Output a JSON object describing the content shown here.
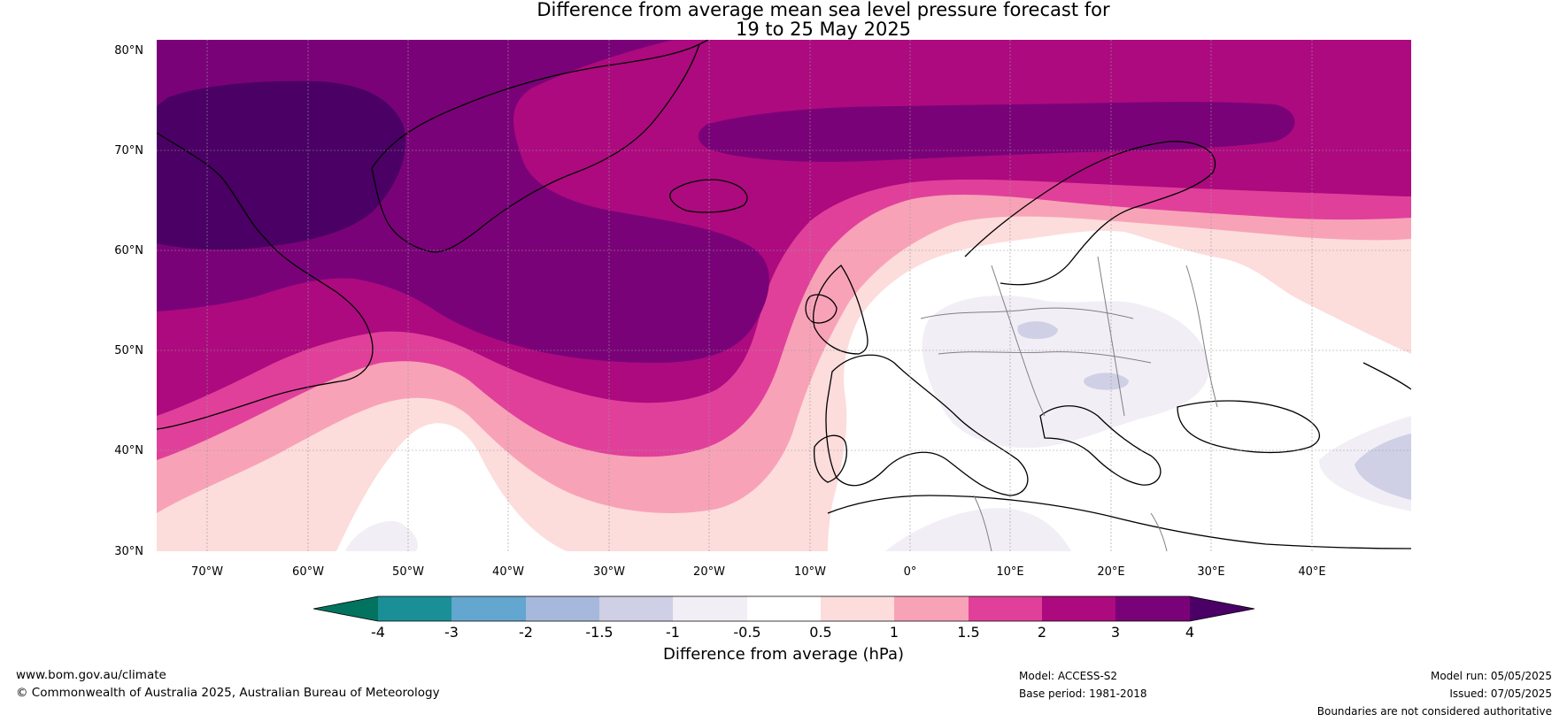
{
  "title": {
    "line1": "Difference from average mean sea level pressure forecast for",
    "line2": "19 to 25 May 2025"
  },
  "map": {
    "lat_labels": [
      "80°N",
      "70°N",
      "60°N",
      "50°N",
      "40°N",
      "30°N"
    ],
    "lon_labels": [
      "70°W",
      "60°W",
      "50°W",
      "40°W",
      "30°W",
      "20°W",
      "10°W",
      "0°",
      "10°E",
      "20°E",
      "30°E",
      "40°E"
    ]
  },
  "colorbar": {
    "ticks": [
      "-4",
      "-3",
      "-2",
      "-1.5",
      "-1",
      "-0.5",
      "0.5",
      "1",
      "1.5",
      "2",
      "3",
      "4"
    ],
    "colors": [
      "#1b8f96",
      "#63a6d0",
      "#a6b9dc",
      "#cfd0e6",
      "#f2eef6",
      "#ffffff",
      "#fddcdc",
      "#f8a2b8",
      "#e0409a",
      "#ad0a7f",
      "#7a0278"
    ],
    "under_color": "#02735f",
    "over_color": "#4a0064",
    "label": "Difference from average (hPa)"
  },
  "footer": {
    "website": "www.bom.gov.au/climate",
    "copyright": "© Commonwealth of Australia 2025, Australian Bureau of Meteorology",
    "model": "Model: ACCESS-S2",
    "base_period": "Base period: 1981-2018",
    "model_run": "Model run: 05/05/2025",
    "issued": "Issued: 07/05/2025",
    "disclaimer": "Boundaries are not considered authoritative"
  }
}
